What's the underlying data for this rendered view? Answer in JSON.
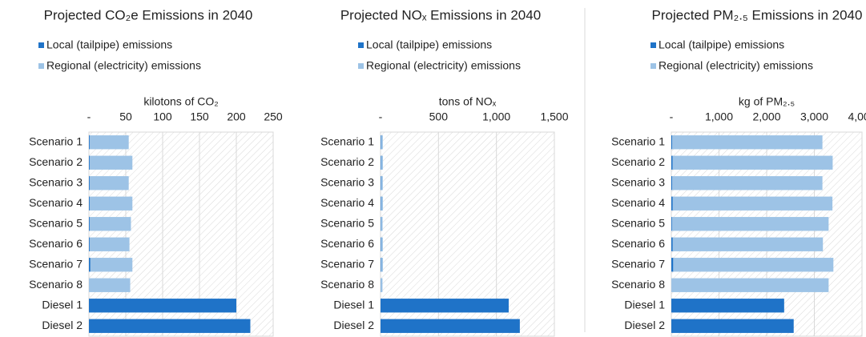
{
  "chart_data": [
    {
      "type": "bar",
      "orientation": "horizontal",
      "stacked": true,
      "grid": true,
      "title": "Projected CO₂e Emissions in 2040",
      "xlabel": "kilotons of CO₂",
      "categories": [
        "Scenario 1",
        "Scenario 2",
        "Scenario 3",
        "Scenario 4",
        "Scenario 5",
        "Scenario 6",
        "Scenario 7",
        "Scenario 8",
        "Diesel 1",
        "Diesel 2"
      ],
      "series": [
        {
          "name": "Local (tailpipe) emissions",
          "color": "#1f73c8",
          "values": [
            1,
            1,
            1,
            1,
            1,
            1,
            2,
            0,
            200,
            219
          ]
        },
        {
          "name": "Regional (electricity) emissions",
          "color": "#9dc3e6",
          "values": [
            53,
            58,
            53,
            58,
            56,
            54,
            57,
            56,
            0,
            0
          ]
        }
      ],
      "xlim": [
        0,
        250
      ],
      "xticks": [
        {
          "value": 0,
          "label": "-"
        },
        50,
        100,
        150,
        200,
        250
      ]
    },
    {
      "type": "bar",
      "orientation": "horizontal",
      "stacked": true,
      "grid": true,
      "title": "Projected NOₓ Emissions in 2040",
      "xlabel": "tons of NOₓ",
      "categories": [
        "Scenario 1",
        "Scenario 2",
        "Scenario 3",
        "Scenario 4",
        "Scenario 5",
        "Scenario 6",
        "Scenario 7",
        "Scenario 8",
        "Diesel 1",
        "Diesel 2"
      ],
      "series": [
        {
          "name": "Local (tailpipe) emissions",
          "color": "#1f73c8",
          "values": [
            5,
            5,
            5,
            5,
            3,
            5,
            5,
            2,
            1106,
            1202
          ]
        },
        {
          "name": "Regional (electricity) emissions",
          "color": "#9dc3e6",
          "values": [
            15,
            16,
            15,
            16,
            15,
            15,
            16,
            15,
            0,
            0
          ]
        }
      ],
      "xlim": [
        0,
        1500
      ],
      "xticks": [
        {
          "value": 0,
          "label": "-"
        },
        500,
        {
          "value": 1000,
          "label": "1,000"
        },
        {
          "value": 1500,
          "label": "1,500"
        }
      ]
    },
    {
      "type": "bar",
      "orientation": "horizontal",
      "stacked": true,
      "grid": true,
      "title": "Projected PM₂.₅ Emissions in 2040",
      "xlabel": "kg of PM₂.₅",
      "categories": [
        "Scenario 1",
        "Scenario 2",
        "Scenario 3",
        "Scenario 4",
        "Scenario 5",
        "Scenario 6",
        "Scenario 7",
        "Scenario 8",
        "Diesel 1",
        "Diesel 2"
      ],
      "series": [
        {
          "name": "Local (tailpipe) emissions",
          "color": "#1f73c8",
          "values": [
            20,
            25,
            20,
            30,
            15,
            30,
            40,
            0,
            2367,
            2567
          ]
        },
        {
          "name": "Regional (electricity) emissions",
          "color": "#9dc3e6",
          "values": [
            3150,
            3360,
            3150,
            3350,
            3285,
            3150,
            3360,
            3300,
            0,
            0
          ]
        }
      ],
      "xlim": [
        0,
        4000
      ],
      "xticks": [
        {
          "value": 0,
          "label": "-"
        },
        {
          "value": 1000,
          "label": "1,000"
        },
        {
          "value": 2000,
          "label": "2,000"
        },
        {
          "value": 3000,
          "label": "3,000"
        },
        {
          "value": 4000,
          "label": "4,000"
        }
      ]
    }
  ]
}
